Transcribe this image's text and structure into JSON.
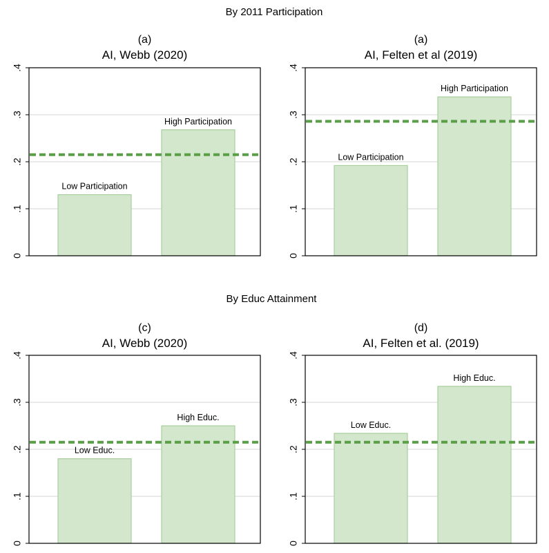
{
  "colors": {
    "bar_fill": "#d3e7cc",
    "bar_stroke": "#a9cf9e",
    "ref_line": "#5a9e48"
  },
  "sections": [
    {
      "title": "By 2011 Participation"
    },
    {
      "title": "By Educ Attainment"
    }
  ],
  "chart_data": [
    {
      "type": "bar",
      "panel_label": "(a)",
      "title": "AI, Webb (2020)",
      "categories": [
        "Low Participation",
        "High Participation"
      ],
      "values": [
        0.13,
        0.268
      ],
      "reference_line": 0.215,
      "ylim": [
        0,
        0.4
      ],
      "yticks": [
        0,
        0.1,
        0.2,
        0.3,
        0.4
      ],
      "ytick_labels": [
        "0",
        ".1",
        ".2",
        ".3",
        ".4"
      ],
      "grid": true
    },
    {
      "type": "bar",
      "panel_label": "(a)",
      "title": "AI, Felten et al (2019)",
      "categories": [
        "Low Participation",
        "High Participation"
      ],
      "values": [
        0.192,
        0.338
      ],
      "reference_line": 0.286,
      "ylim": [
        0,
        0.4
      ],
      "yticks": [
        0,
        0.1,
        0.2,
        0.3,
        0.4
      ],
      "ytick_labels": [
        "0",
        ".1",
        ".2",
        ".3",
        ".4"
      ],
      "grid": true
    },
    {
      "type": "bar",
      "panel_label": "(c)",
      "title": "AI, Webb (2020)",
      "categories": [
        "Low Educ.",
        "High Educ."
      ],
      "values": [
        0.18,
        0.25
      ],
      "reference_line": 0.215,
      "ylim": [
        0,
        0.4
      ],
      "yticks": [
        0,
        0.1,
        0.2,
        0.3,
        0.4
      ],
      "ytick_labels": [
        "0",
        ".1",
        ".2",
        ".3",
        ".4"
      ],
      "grid": true
    },
    {
      "type": "bar",
      "panel_label": "(d)",
      "title": "AI, Felten et al. (2019)",
      "categories": [
        "Low Educ.",
        "High Educ."
      ],
      "values": [
        0.234,
        0.334
      ],
      "reference_line": 0.215,
      "ylim": [
        0,
        0.4
      ],
      "yticks": [
        0,
        0.1,
        0.2,
        0.3,
        0.4
      ],
      "ytick_labels": [
        "0",
        ".1",
        ".2",
        ".3",
        ".4"
      ],
      "grid": true
    }
  ]
}
